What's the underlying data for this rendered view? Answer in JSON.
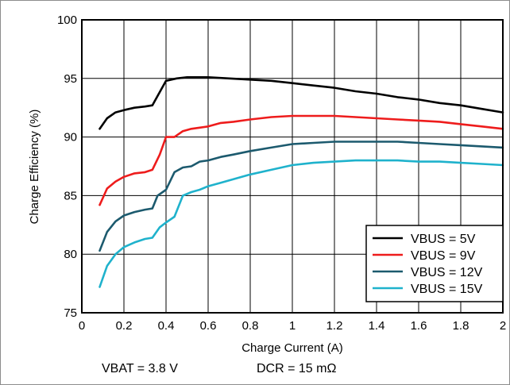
{
  "chart_data": {
    "type": "line",
    "title": "",
    "xlabel": "Charge Current (A)",
    "ylabel": "Charge Efficiency (%)",
    "xlim": [
      0,
      2
    ],
    "ylim": [
      75,
      100
    ],
    "xticks": [
      0,
      0.2,
      0.4,
      0.6,
      0.8,
      1,
      1.2,
      1.4,
      1.6,
      1.8,
      2
    ],
    "xtick_labels": [
      "0",
      "0.2",
      "0.4",
      "0.6",
      "0.8",
      "1",
      "1.2",
      "1.4",
      "1.6",
      "1.8",
      "2"
    ],
    "yticks": [
      75,
      80,
      85,
      90,
      95,
      100
    ],
    "ytick_labels": [
      "75",
      "80",
      "85",
      "90",
      "95",
      "100"
    ],
    "grid": true,
    "legend_position": "bottom-right",
    "series": [
      {
        "name": "VBUS = 5V",
        "color": "#000000",
        "x": [
          0.085,
          0.12,
          0.16,
          0.2,
          0.25,
          0.3,
          0.335,
          0.4,
          0.45,
          0.5,
          0.55,
          0.6,
          0.7,
          0.8,
          0.9,
          1.0,
          1.1,
          1.2,
          1.3,
          1.4,
          1.5,
          1.6,
          1.7,
          1.8,
          1.9,
          2.0
        ],
        "y": [
          90.7,
          91.6,
          92.1,
          92.3,
          92.5,
          92.6,
          92.7,
          94.8,
          95.0,
          95.1,
          95.1,
          95.1,
          95.0,
          94.9,
          94.8,
          94.6,
          94.4,
          94.2,
          93.9,
          93.7,
          93.4,
          93.2,
          92.9,
          92.7,
          92.4,
          92.1
        ]
      },
      {
        "name": "VBUS = 9V",
        "color": "#ee1c1c",
        "x": [
          0.085,
          0.12,
          0.16,
          0.2,
          0.25,
          0.3,
          0.335,
          0.37,
          0.4,
          0.44,
          0.48,
          0.52,
          0.56,
          0.6,
          0.66,
          0.72,
          0.8,
          0.9,
          1.0,
          1.1,
          1.2,
          1.3,
          1.4,
          1.5,
          1.6,
          1.7,
          1.8,
          1.9,
          2.0
        ],
        "y": [
          84.2,
          85.6,
          86.2,
          86.6,
          86.9,
          87.0,
          87.2,
          88.5,
          90.0,
          90.0,
          90.5,
          90.7,
          90.8,
          90.9,
          91.2,
          91.3,
          91.5,
          91.7,
          91.8,
          91.8,
          91.8,
          91.7,
          91.6,
          91.5,
          91.4,
          91.3,
          91.1,
          90.9,
          90.7
        ]
      },
      {
        "name": "VBUS = 12V",
        "color": "#1c5a6e",
        "x": [
          0.085,
          0.12,
          0.16,
          0.2,
          0.25,
          0.3,
          0.335,
          0.36,
          0.4,
          0.44,
          0.48,
          0.52,
          0.56,
          0.6,
          0.66,
          0.72,
          0.8,
          0.9,
          1.0,
          1.1,
          1.2,
          1.3,
          1.4,
          1.5,
          1.6,
          1.7,
          1.8,
          1.9,
          2.0
        ],
        "y": [
          80.3,
          81.9,
          82.8,
          83.3,
          83.6,
          83.8,
          83.9,
          85.0,
          85.5,
          87.0,
          87.4,
          87.5,
          87.9,
          88.0,
          88.3,
          88.5,
          88.8,
          89.1,
          89.4,
          89.5,
          89.6,
          89.6,
          89.6,
          89.6,
          89.5,
          89.4,
          89.3,
          89.2,
          89.1
        ]
      },
      {
        "name": "VBUS = 15V",
        "color": "#1fb2cc",
        "x": [
          0.085,
          0.12,
          0.16,
          0.2,
          0.25,
          0.3,
          0.335,
          0.37,
          0.4,
          0.44,
          0.48,
          0.52,
          0.56,
          0.6,
          0.66,
          0.72,
          0.8,
          0.9,
          1.0,
          1.1,
          1.2,
          1.3,
          1.4,
          1.5,
          1.6,
          1.7,
          1.8,
          1.9,
          2.0
        ],
        "y": [
          77.2,
          79.0,
          80.0,
          80.6,
          81.0,
          81.3,
          81.4,
          82.3,
          82.7,
          83.2,
          85.0,
          85.3,
          85.5,
          85.8,
          86.1,
          86.4,
          86.8,
          87.2,
          87.6,
          87.8,
          87.9,
          88.0,
          88.0,
          88.0,
          87.9,
          87.9,
          87.8,
          87.7,
          87.6
        ]
      }
    ]
  },
  "notes": {
    "vbat": "VBAT = 3.8 V",
    "dcr": "DCR = 15 mΩ"
  }
}
